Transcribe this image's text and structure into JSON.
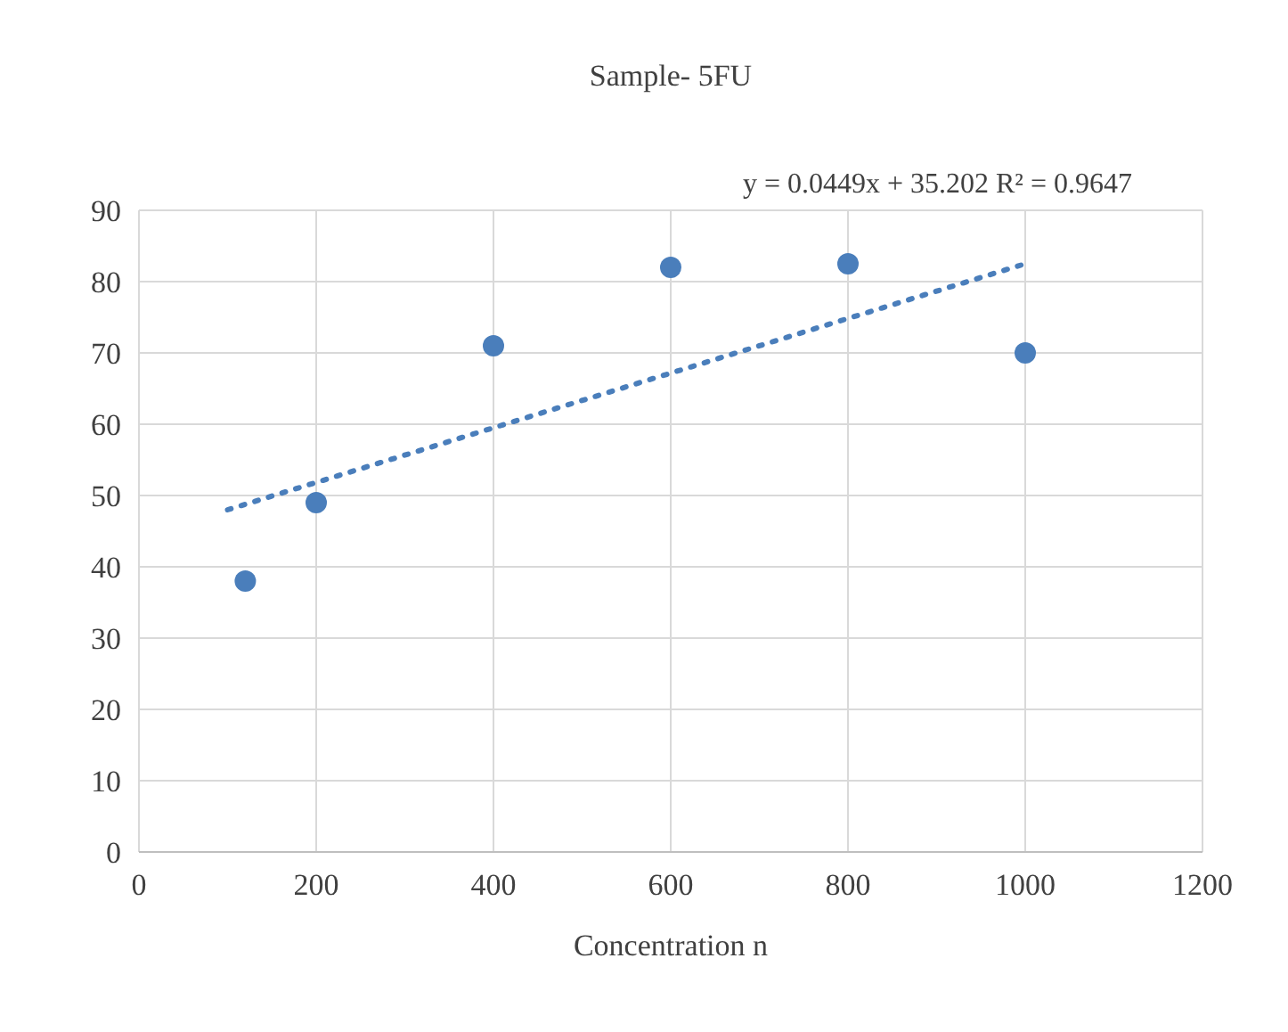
{
  "chart_data": {
    "type": "scatter",
    "title": "Sample- 5FU",
    "xlabel": "Concentration n",
    "annotations": [
      {
        "text": "y = 0.0449x + 35.202 R² = 0.9647",
        "x": 1000,
        "y": 82.5
      }
    ],
    "series": [
      {
        "color": "#4a7ebb",
        "x": [
          120,
          200,
          400,
          600,
          800,
          1000
        ],
        "values": [
          38,
          49,
          71,
          82,
          82.5,
          70
        ],
        "marker": "circle"
      },
      {
        "type": "line",
        "color": "#4a7ebb",
        "x": [
          100,
          1000
        ],
        "values": [
          48,
          82.5
        ],
        "line_style": "dotted"
      }
    ],
    "xlim": [
      0,
      1200
    ],
    "xticks": [
      0,
      200,
      400,
      600,
      800,
      1000,
      1200
    ],
    "ylim": [
      0,
      90
    ],
    "yticks": [
      0,
      10,
      20,
      30,
      40,
      50,
      60,
      70,
      80,
      90
    ],
    "grid": true
  }
}
